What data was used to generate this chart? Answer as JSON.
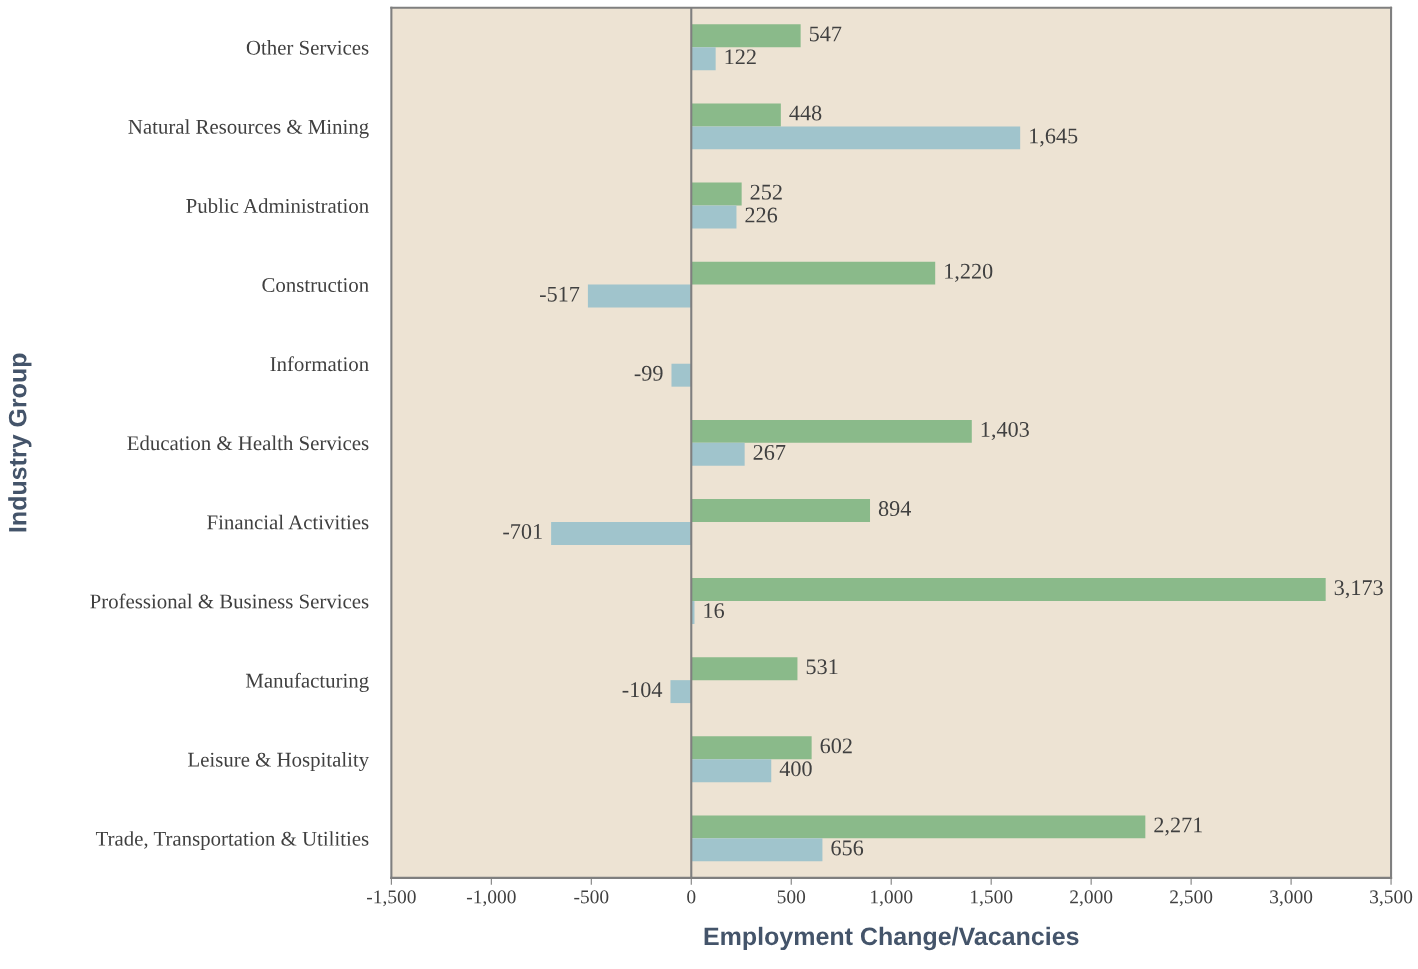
{
  "chart_data": {
    "type": "bar",
    "orientation": "horizontal",
    "xlabel": "Employment Change/Vacancies",
    "ylabel": "Industry Group",
    "categories": [
      "Other Services",
      "Natural Resources & Mining",
      "Public Administration",
      "Construction",
      "Information",
      "Education & Health Services",
      "Financial Activities",
      "Professional & Business Services",
      "Manufacturing",
      "Leisure & Hospitality",
      "Trade, Transportation & Utilities"
    ],
    "series": [
      {
        "color": "#8aba8a",
        "values": [
          547,
          448,
          252,
          1220,
          null,
          1403,
          894,
          3173,
          531,
          602,
          2271
        ],
        "value_labels": [
          "547",
          "448",
          "252",
          "1,220",
          null,
          "1,403",
          "894",
          "3,173",
          "531",
          "602",
          "2,271"
        ]
      },
      {
        "color": "#a0c4cc",
        "values": [
          122,
          1645,
          226,
          -517,
          -99,
          267,
          -701,
          16,
          -104,
          400,
          656
        ],
        "value_labels": [
          "122",
          "1,645",
          "226",
          "-517",
          "-99",
          "267",
          "-701",
          "16",
          "-104",
          "400",
          "656"
        ]
      }
    ],
    "xlim": [
      -1500,
      3500
    ],
    "xticks": [
      {
        "value": -1500,
        "label": "-1,500"
      },
      {
        "value": -1000,
        "label": "-1,000"
      },
      -500,
      0,
      500,
      {
        "value": 1000,
        "label": "1,000"
      },
      {
        "value": 1500,
        "label": "1,500"
      },
      {
        "value": 2000,
        "label": "2,000"
      },
      {
        "value": 2500,
        "label": "2,500"
      },
      {
        "value": 3000,
        "label": "3,000"
      },
      {
        "value": 3500,
        "label": "3,500"
      }
    ],
    "ref_lines": [
      {
        "axis": "x",
        "value": 0,
        "color": "#7f7f7f"
      }
    ],
    "grid": false,
    "legend": false
  }
}
